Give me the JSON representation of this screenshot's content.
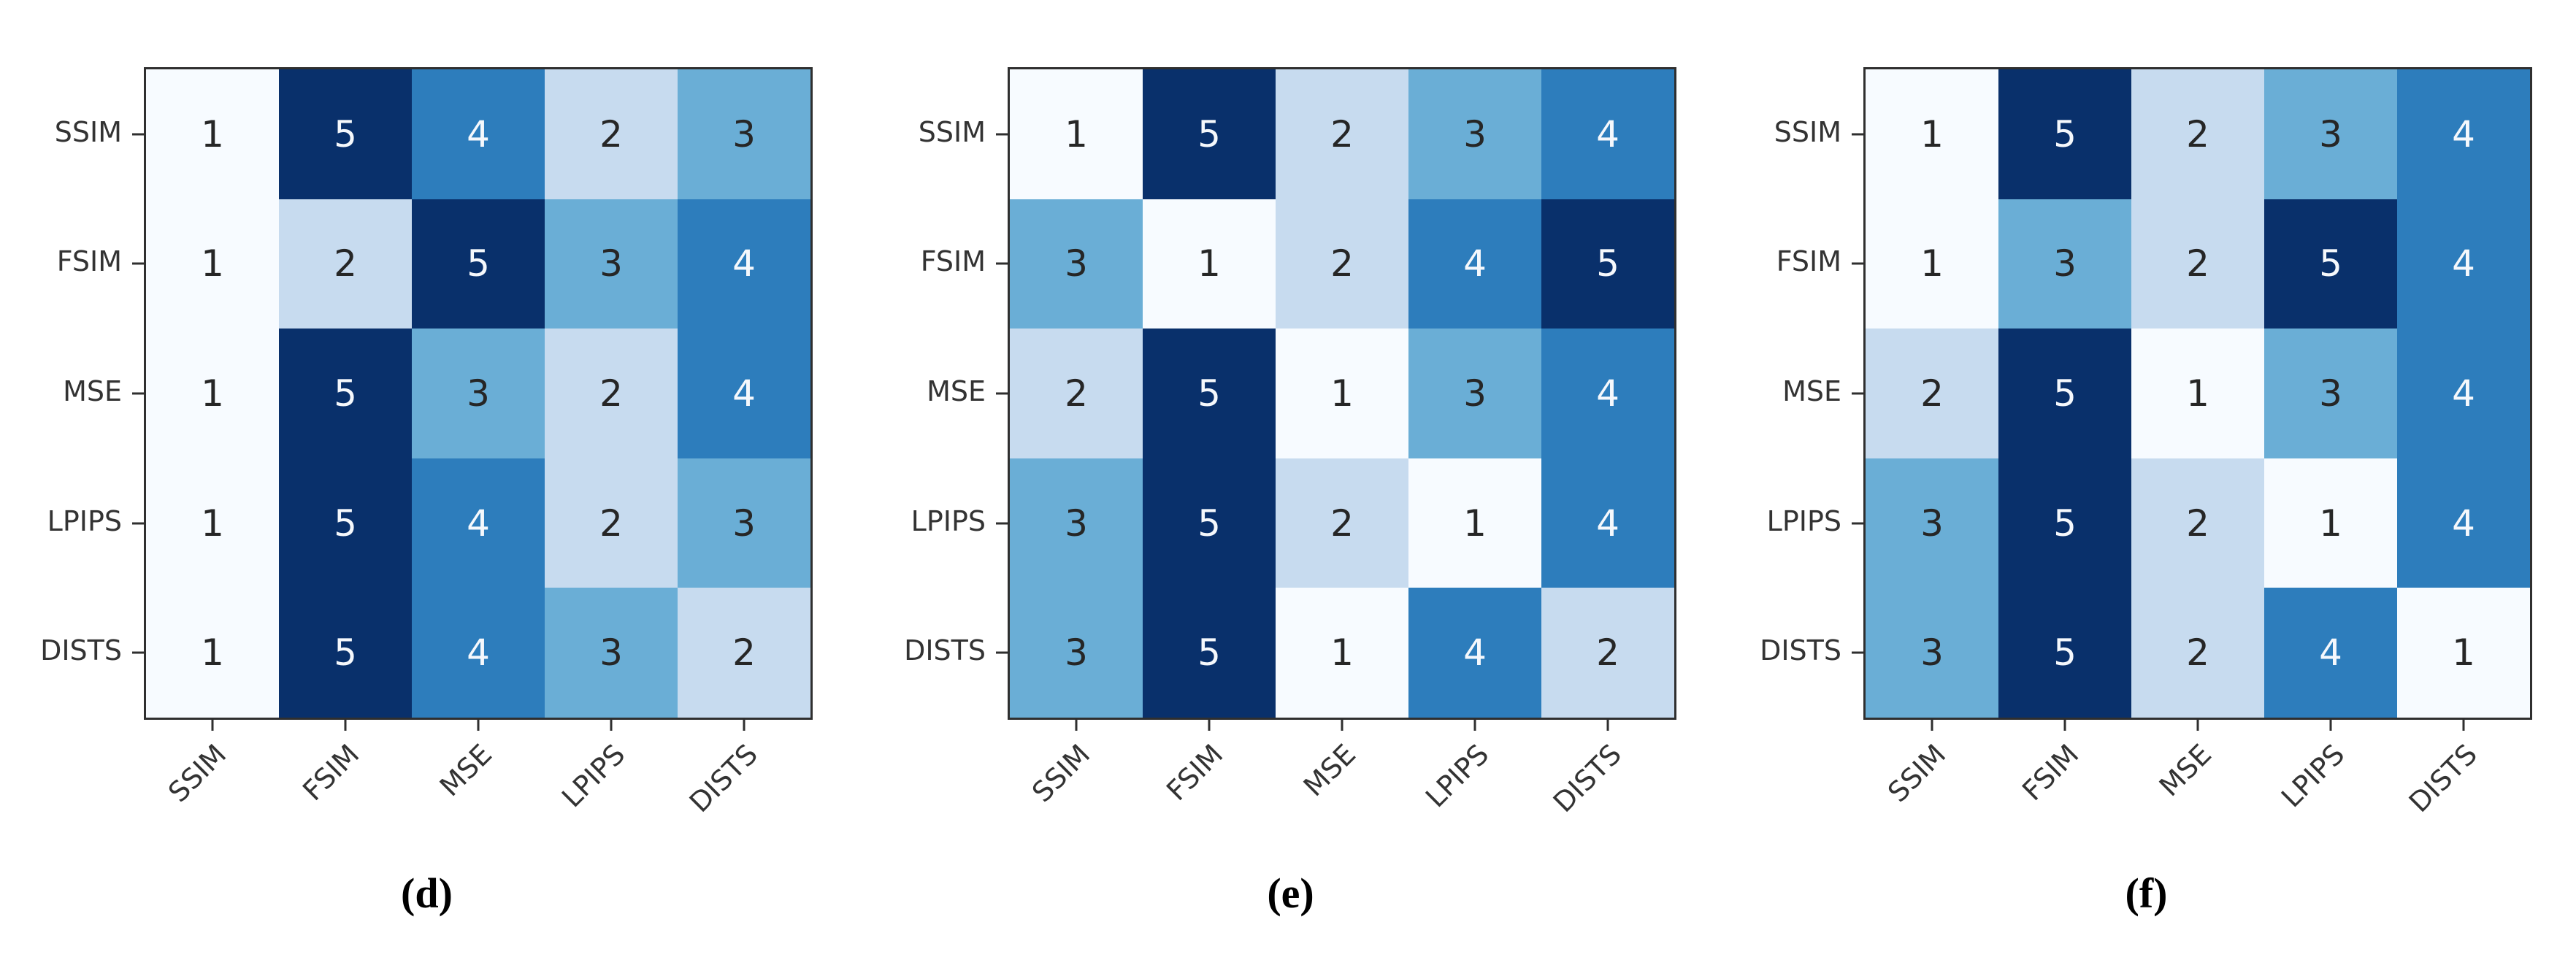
{
  "page": {
    "background": "#ffffff"
  },
  "axis": {
    "row_labels": [
      "SSIM",
      "FSIM",
      "MSE",
      "LPIPS",
      "DISTS"
    ],
    "col_labels": [
      "SSIM",
      "FSIM",
      "MSE",
      "LPIPS",
      "DISTS"
    ]
  },
  "colors": {
    "scale": [
      "#f7fbff",
      "#c7dbef",
      "#6aaed6",
      "#2d7dbc",
      "#09306b"
    ],
    "text_dark": "#262626",
    "text_light": "#f5f8fc",
    "axis_text": "#333333",
    "frame": "#2f2f2f",
    "light_text_min_value": 4
  },
  "chart_data": [
    {
      "type": "heatmap",
      "caption": "(d)",
      "rows": [
        "SSIM",
        "FSIM",
        "MSE",
        "LPIPS",
        "DISTS"
      ],
      "columns": [
        "SSIM",
        "FSIM",
        "MSE",
        "LPIPS",
        "DISTS"
      ],
      "values": [
        [
          1,
          5,
          4,
          2,
          3
        ],
        [
          1,
          2,
          5,
          3,
          4
        ],
        [
          1,
          5,
          3,
          2,
          4
        ],
        [
          1,
          5,
          4,
          2,
          3
        ],
        [
          1,
          5,
          4,
          3,
          2
        ]
      ],
      "value_range": [
        1,
        5
      ],
      "colormap": "Blues (dark = high rank)",
      "legend": "none",
      "grid": "off"
    },
    {
      "type": "heatmap",
      "caption": "(e)",
      "rows": [
        "SSIM",
        "FSIM",
        "MSE",
        "LPIPS",
        "DISTS"
      ],
      "columns": [
        "SSIM",
        "FSIM",
        "MSE",
        "LPIPS",
        "DISTS"
      ],
      "values": [
        [
          1,
          5,
          2,
          3,
          4
        ],
        [
          3,
          1,
          2,
          4,
          5
        ],
        [
          2,
          5,
          1,
          3,
          4
        ],
        [
          3,
          5,
          2,
          1,
          4
        ],
        [
          3,
          5,
          1,
          4,
          2
        ]
      ],
      "value_range": [
        1,
        5
      ],
      "colormap": "Blues (dark = high rank)",
      "legend": "none",
      "grid": "off"
    },
    {
      "type": "heatmap",
      "caption": "(f)",
      "rows": [
        "SSIM",
        "FSIM",
        "MSE",
        "LPIPS",
        "DISTS"
      ],
      "columns": [
        "SSIM",
        "FSIM",
        "MSE",
        "LPIPS",
        "DISTS"
      ],
      "values": [
        [
          1,
          5,
          2,
          3,
          4
        ],
        [
          1,
          3,
          2,
          5,
          4
        ],
        [
          2,
          5,
          1,
          3,
          4
        ],
        [
          3,
          5,
          2,
          1,
          4
        ],
        [
          3,
          5,
          2,
          4,
          1
        ]
      ],
      "value_range": [
        1,
        5
      ],
      "colormap": "Blues (dark = high rank)",
      "legend": "none",
      "grid": "off"
    }
  ]
}
